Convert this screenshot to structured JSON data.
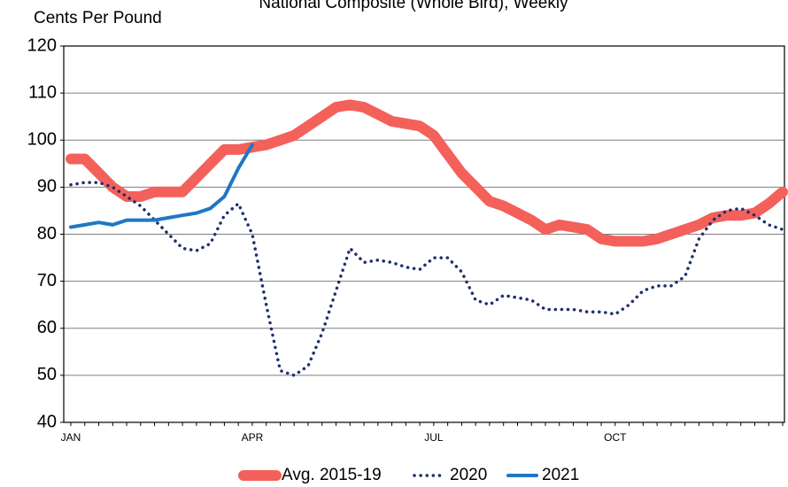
{
  "chart_data": {
    "type": "line",
    "title": "National Composite (Whole Bird), Weekly",
    "y_label": "Cents Per Pound",
    "categories": [
      "JAN",
      null,
      null,
      null,
      null,
      null,
      null,
      null,
      null,
      null,
      null,
      null,
      null,
      "APR",
      null,
      null,
      null,
      null,
      null,
      null,
      null,
      null,
      null,
      null,
      null,
      null,
      "JUL",
      null,
      null,
      null,
      null,
      null,
      null,
      null,
      null,
      null,
      null,
      null,
      null,
      "OCT",
      null,
      null,
      null,
      null,
      null,
      null,
      null,
      null,
      null,
      null,
      null,
      null
    ],
    "ylim": [
      40,
      120
    ],
    "yticks": [
      40,
      50,
      60,
      70,
      80,
      90,
      100,
      110,
      120
    ],
    "grid": true,
    "series": [
      {
        "name": "Avg. 2015-19",
        "color": "#f4605a",
        "style": "solid",
        "width": 12,
        "values": [
          96,
          96,
          93,
          90,
          88,
          88,
          89,
          89,
          89,
          92,
          95,
          98,
          98,
          98.5,
          99,
          100,
          101,
          103,
          105,
          107,
          107.5,
          107,
          105.5,
          104,
          103.5,
          103,
          101,
          97,
          93,
          90,
          87,
          86,
          84.5,
          83,
          81,
          82,
          81.5,
          81,
          79,
          78.5,
          78.5,
          78.5,
          79,
          80,
          81,
          82,
          83.5,
          84,
          84,
          84.5,
          86.5,
          89
        ]
      },
      {
        "name": "2020",
        "color": "#1f2e6e",
        "style": "dotted",
        "width": 3.5,
        "values": [
          90.5,
          91,
          91,
          90,
          88,
          86,
          83,
          80,
          77,
          76.5,
          78,
          84,
          86.5,
          80,
          65,
          51,
          50,
          52,
          59,
          68,
          77,
          74,
          74.5,
          74,
          73,
          72.5,
          75,
          75,
          72,
          66,
          65,
          67,
          66.5,
          66,
          64,
          64,
          64,
          63.5,
          63.5,
          63,
          65,
          68,
          69,
          69,
          71,
          79,
          83,
          85,
          85.5,
          84,
          82,
          81
        ]
      },
      {
        "name": "2021",
        "color": "#1f77c4",
        "style": "solid",
        "width": 4,
        "values": [
          81.5,
          82,
          82.5,
          82,
          83,
          83,
          83,
          83.5,
          84,
          84.5,
          85.5,
          88,
          94,
          99,
          null,
          null,
          null,
          null,
          null,
          null,
          null,
          null,
          null,
          null,
          null,
          null,
          null,
          null,
          null,
          null,
          null,
          null,
          null,
          null,
          null,
          null,
          null,
          null,
          null,
          null,
          null,
          null,
          null,
          null,
          null,
          null,
          null,
          null,
          null,
          null,
          null,
          null
        ]
      }
    ]
  }
}
